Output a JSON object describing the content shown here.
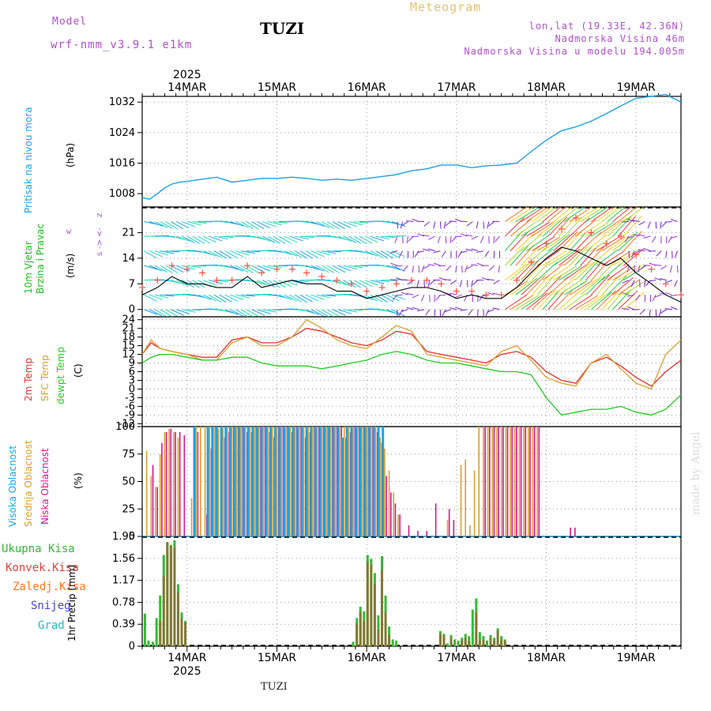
{
  "header": {
    "model_label": "Model",
    "model_name": "wrf-nmm_v3.9.1 e1km",
    "station": "TUZI",
    "meteogram": "Meteogram",
    "lonlat": "lon,lat (19.33E, 42.36N)",
    "elevation": "Nadmorska Visina 46m",
    "model_elevation": "Nadmorska Visina u modelu 194.005m",
    "footer_station": "TUZI",
    "credit": "made by Angel",
    "year": "2025"
  },
  "colors": {
    "pressure": "#1aa3e8",
    "wind_label": "#22bb22",
    "temp2m": "#e83030",
    "sfc": "#d8a030",
    "dewpt": "#22cc22",
    "high_cloud": "#1aa3e8",
    "mid_cloud": "#d8a030",
    "low_cloud": "#d01890",
    "total_precip": "#33bb33",
    "conv_precip": "#e84040",
    "frozen": "#ff7722",
    "snow": "#4444dd",
    "hail": "#22bbbb",
    "header_purple": "#b050d0",
    "header_gold": "#e8c070"
  },
  "time_axis": {
    "labels": [
      "14MAR",
      "15MAR",
      "16MAR",
      "17MAR",
      "18MAR",
      "19MAR"
    ],
    "day_start": 13.5,
    "day_end": 19.5
  },
  "chart_data": [
    {
      "type": "line",
      "name": "pressure",
      "ylabel": "Pritisak na nivou mora",
      "unit": "(hPa)",
      "yticks": [
        1008,
        1016,
        1024,
        1032
      ],
      "ylim": [
        1004.5,
        1033.5
      ],
      "x": [
        13.5,
        13.58,
        13.67,
        13.75,
        13.83,
        13.92,
        14.0,
        14.17,
        14.33,
        14.5,
        14.67,
        14.83,
        15.0,
        15.17,
        15.33,
        15.5,
        15.67,
        15.83,
        16.0,
        16.17,
        16.33,
        16.5,
        16.67,
        16.83,
        17.0,
        17.17,
        17.33,
        17.5,
        17.67,
        17.83,
        18.0,
        18.17,
        18.33,
        18.5,
        18.67,
        18.83,
        19.0,
        19.17,
        19.33,
        19.5
      ],
      "values": [
        1007,
        1006.5,
        1008,
        1009.5,
        1010.5,
        1011,
        1011.2,
        1011.8,
        1012.3,
        1011,
        1011.5,
        1012,
        1012,
        1012.3,
        1012,
        1011.5,
        1011.8,
        1011.5,
        1012,
        1012.5,
        1013,
        1014,
        1014.5,
        1015.5,
        1015.5,
        1014.8,
        1015.3,
        1015.5,
        1016,
        1019,
        1022,
        1024.5,
        1025.5,
        1027,
        1029,
        1031,
        1033,
        1033.5,
        1034,
        1032
      ]
    },
    {
      "type": "line",
      "name": "wind_speed",
      "ylabel": "10m Vjetar Brzina i Pravac",
      "unit": "(m/s)",
      "direction_legend": [
        "z",
        "w",
        "<-",
        "->",
        "s",
        "j",
        "i"
      ],
      "yticks": [
        0,
        7,
        14,
        21
      ],
      "ylim": [
        -2,
        28
      ],
      "x": [
        13.5,
        13.67,
        13.83,
        14.0,
        14.17,
        14.33,
        14.5,
        14.67,
        14.83,
        15.0,
        15.17,
        15.33,
        15.5,
        15.67,
        15.83,
        16.0,
        16.17,
        16.33,
        16.5,
        16.67,
        16.83,
        17.0,
        17.17,
        17.33,
        17.5,
        17.67,
        17.83,
        18.0,
        18.17,
        18.33,
        18.5,
        18.67,
        18.83,
        19.0,
        19.17,
        19.33,
        19.5
      ],
      "values": [
        4,
        6,
        9,
        7,
        7,
        6,
        6,
        9,
        6,
        7,
        8,
        7,
        7,
        5,
        5,
        3,
        4,
        5,
        6,
        6,
        5,
        3,
        4,
        3,
        3,
        6,
        10,
        14,
        17,
        16,
        14,
        12,
        14,
        10,
        7,
        4,
        2
      ],
      "gust_values": [
        6,
        8,
        12,
        11,
        10,
        8,
        8,
        12,
        10,
        11,
        11,
        10,
        9,
        8,
        7,
        5,
        6,
        7,
        8,
        8,
        7,
        5,
        5,
        4,
        4,
        8,
        13,
        18,
        22,
        25,
        21,
        18,
        20,
        15,
        11,
        7,
        4
      ]
    },
    {
      "type": "line",
      "name": "temperature",
      "ylabel": [
        "2m Temp",
        "SFC Temp",
        "dewpt Temp"
      ],
      "unit": "(C)",
      "yticks": [
        -12,
        -9,
        -6,
        -3,
        0,
        3,
        6,
        9,
        12,
        15,
        18,
        21,
        24
      ],
      "ylim": [
        -13,
        25
      ],
      "x": [
        13.5,
        13.6,
        13.7,
        13.83,
        14.0,
        14.17,
        14.33,
        14.5,
        14.67,
        14.83,
        15.0,
        15.17,
        15.33,
        15.5,
        15.67,
        15.83,
        16.0,
        16.17,
        16.33,
        16.5,
        16.67,
        16.83,
        17.0,
        17.17,
        17.33,
        17.5,
        17.67,
        17.83,
        18.0,
        18.17,
        18.33,
        18.5,
        18.67,
        18.83,
        19.0,
        19.17,
        19.33,
        19.5
      ],
      "series": [
        {
          "name": "2m Temp",
          "values": [
            12,
            16,
            14,
            13,
            12,
            11,
            11,
            17,
            18,
            16,
            16,
            18,
            21,
            20,
            18,
            16,
            15,
            17,
            20,
            19,
            13,
            12,
            11,
            10,
            9,
            12,
            13,
            11,
            6,
            3,
            2,
            9,
            11,
            8,
            4,
            1,
            6,
            10
          ]
        },
        {
          "name": "SFC Temp",
          "values": [
            12,
            17,
            14,
            13,
            12,
            10,
            10,
            16,
            18,
            15,
            15,
            18,
            24,
            21,
            17,
            15,
            14,
            18,
            22,
            20,
            12,
            11,
            10,
            9,
            8,
            13,
            15,
            10,
            4,
            2,
            1,
            9,
            12,
            7,
            2,
            0,
            12,
            17
          ]
        },
        {
          "name": "dewpt Temp",
          "values": [
            9,
            11,
            12,
            12,
            11,
            10,
            10,
            11,
            11,
            9,
            8,
            8,
            8,
            7,
            8,
            9,
            10,
            12,
            13,
            12,
            10,
            9,
            9,
            8,
            7,
            6,
            6,
            5,
            -3,
            -9,
            -8,
            -7,
            -7,
            -6,
            -8,
            -9,
            -7,
            -2
          ]
        }
      ]
    },
    {
      "type": "bar",
      "name": "cloud_cover",
      "ylabel": [
        "Visoka Oblacnost",
        "Srednja Oblacnost",
        "Niska Oblacnost"
      ],
      "unit": "(%)",
      "yticks": [
        0,
        25,
        50,
        75,
        100
      ],
      "ylim": [
        0,
        100
      ],
      "x": [
        13.55,
        13.6,
        13.65,
        13.7,
        13.75,
        13.8,
        13.85,
        13.9,
        13.95,
        14.05,
        14.1,
        14.15,
        14.2,
        14.25,
        14.3,
        14.35,
        14.4,
        14.45,
        14.5,
        14.55,
        14.6,
        14.65,
        14.7,
        14.75,
        14.8,
        14.85,
        14.9,
        14.95,
        15.0,
        15.05,
        15.1,
        15.15,
        15.2,
        15.25,
        15.3,
        15.35,
        15.4,
        15.45,
        15.5,
        15.55,
        15.6,
        15.65,
        15.7,
        15.75,
        15.8,
        15.85,
        15.9,
        15.95,
        16.0,
        16.05,
        16.1,
        16.15,
        16.2,
        16.25,
        16.3,
        16.35,
        16.45,
        16.55,
        16.65,
        16.75,
        16.85,
        16.9,
        16.95,
        17.05,
        17.1,
        17.15,
        17.2,
        17.25,
        17.3,
        17.35,
        17.4,
        17.45,
        17.5,
        17.55,
        17.6,
        17.65,
        17.7,
        17.75,
        17.8,
        17.85,
        17.9,
        18.25,
        18.3
      ],
      "series": [
        {
          "name": "Visoka Oblacnost",
          "values": [
            0,
            0,
            0,
            0,
            0,
            0,
            0,
            0,
            0,
            0,
            100,
            0,
            0,
            100,
            100,
            100,
            100,
            100,
            100,
            100,
            100,
            100,
            100,
            100,
            100,
            100,
            100,
            100,
            100,
            100,
            100,
            100,
            100,
            100,
            100,
            100,
            100,
            100,
            100,
            100,
            100,
            100,
            100,
            90,
            100,
            100,
            100,
            100,
            100,
            100,
            100,
            100,
            100,
            0,
            0,
            0,
            0,
            0,
            0,
            0,
            0,
            0,
            0,
            0,
            0,
            0,
            0,
            0,
            0,
            0,
            0,
            0,
            0,
            0,
            0,
            0,
            0,
            0,
            0,
            0,
            0,
            0,
            0
          ]
        },
        {
          "name": "Srednja Oblacnost",
          "values": [
            78,
            55,
            45,
            75,
            95,
            98,
            95,
            90,
            0,
            35,
            100,
            100,
            100,
            100,
            100,
            98,
            100,
            100,
            100,
            100,
            100,
            100,
            100,
            100,
            100,
            100,
            100,
            100,
            100,
            100,
            100,
            100,
            100,
            100,
            100,
            100,
            100,
            100,
            100,
            100,
            100,
            100,
            100,
            100,
            100,
            100,
            100,
            100,
            100,
            100,
            100,
            90,
            80,
            60,
            40,
            20,
            0,
            0,
            0,
            0,
            0,
            15,
            0,
            65,
            70,
            10,
            60,
            100,
            100,
            100,
            100,
            100,
            100,
            100,
            100,
            100,
            100,
            100,
            100,
            100,
            100,
            0,
            0
          ]
        },
        {
          "name": "Niska Oblacnost",
          "values": [
            0,
            65,
            45,
            85,
            95,
            98,
            95,
            95,
            92,
            0,
            95,
            0,
            20,
            80,
            100,
            0,
            90,
            95,
            100,
            100,
            100,
            95,
            95,
            100,
            100,
            100,
            95,
            90,
            100,
            100,
            100,
            95,
            100,
            100,
            90,
            95,
            100,
            100,
            100,
            100,
            100,
            100,
            100,
            90,
            95,
            100,
            100,
            100,
            100,
            100,
            95,
            85,
            55,
            40,
            30,
            20,
            10,
            5,
            5,
            30,
            0,
            25,
            15,
            0,
            0,
            0,
            0,
            0,
            100,
            100,
            100,
            100,
            100,
            100,
            100,
            100,
            100,
            100,
            100,
            100,
            100,
            8,
            8
          ]
        }
      ]
    },
    {
      "type": "bar",
      "name": "precipitation",
      "ylabel": [
        "Ukupna Kisa",
        "Konvek.Kisa",
        "Zaledj.Kisa",
        "Snijeg",
        "Grad"
      ],
      "unit": "1hr Precip (mm)",
      "yticks": [
        0,
        0.39,
        0.78,
        1.17,
        1.56,
        1.95
      ],
      "ylim": [
        0,
        1.95
      ],
      "x": [
        13.53,
        13.57,
        13.62,
        13.66,
        13.7,
        13.74,
        13.78,
        13.82,
        13.86,
        13.9,
        13.94,
        13.98,
        14.02,
        15.85,
        15.89,
        15.93,
        15.97,
        16.01,
        16.05,
        16.09,
        16.13,
        16.17,
        16.21,
        16.25,
        16.29,
        16.33,
        16.37,
        16.82,
        16.86,
        16.9,
        16.94,
        16.98,
        17.02,
        17.06,
        17.1,
        17.14,
        17.18,
        17.22,
        17.26,
        17.3,
        17.34,
        17.38,
        17.42,
        17.46,
        17.5,
        17.54,
        17.58,
        17.62,
        17.66,
        17.7
      ],
      "series": [
        {
          "name": "Ukupna Kisa",
          "values": [
            0.58,
            0.1,
            0.08,
            0.5,
            0.9,
            1.62,
            1.85,
            1.8,
            1.88,
            1.1,
            0.6,
            0.45,
            0,
            0.08,
            0.5,
            0.7,
            0.62,
            1.62,
            1.55,
            1.3,
            0.55,
            1.6,
            0.9,
            0.35,
            0.12,
            0.1,
            0,
            0.27,
            0.22,
            0.05,
            0.2,
            0.12,
            0.1,
            0.15,
            0.22,
            0.18,
            0.65,
            0.85,
            0.25,
            0.18,
            0.1,
            0.2,
            0.15,
            0.32,
            0.18,
            0.12,
            0,
            0,
            0,
            0
          ]
        },
        {
          "name": "Konvek.Kisa",
          "values": [
            0,
            0,
            0,
            0,
            0.45,
            1.25,
            1.85,
            1.78,
            1.75,
            0.95,
            0.5,
            0.42,
            0,
            0,
            0.4,
            0.62,
            0.45,
            1.5,
            1.45,
            1.1,
            0.3,
            1.35,
            0.6,
            0.2,
            0,
            0,
            0,
            0.22,
            0.2,
            0,
            0.15,
            0,
            0,
            0.1,
            0.15,
            0.1,
            0,
            0.6,
            0.1,
            0.12,
            0,
            0.15,
            0.1,
            0.28,
            0.12,
            0.1,
            0,
            0,
            0,
            0
          ]
        }
      ]
    }
  ]
}
